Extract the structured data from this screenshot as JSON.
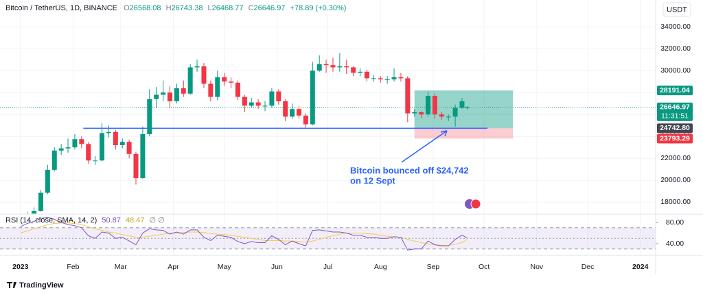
{
  "chart_data": {
    "type": "candlestick",
    "title": "Bitcoin / TetherUS, 1D, BINANCE",
    "ohlc_labels": [
      "O",
      "H",
      "L",
      "C"
    ],
    "change_label": "+78.89 (+0.30%)",
    "currency": "USDT",
    "x": [
      0,
      4,
      8,
      12,
      16,
      20,
      24,
      28,
      32,
      36,
      40,
      44,
      48,
      52,
      56,
      60,
      64,
      68,
      72,
      76,
      80,
      84,
      88,
      92,
      96,
      100,
      104,
      108,
      112,
      116,
      120,
      124,
      128,
      132,
      136,
      140,
      144,
      148,
      152,
      156,
      160,
      164,
      168,
      172,
      176,
      180,
      184,
      188,
      192,
      196,
      200,
      204,
      208,
      212,
      216,
      220,
      224,
      228,
      232,
      236,
      240,
      244,
      248,
      252,
      256,
      260,
      263
    ],
    "open": [
      16550,
      16600,
      16850,
      17200,
      18850,
      20950,
      22700,
      22900,
      23000,
      23750,
      23300,
      21800,
      21800,
      24300,
      24400,
      23200,
      23500,
      22400,
      20200,
      24200,
      27400,
      27800,
      28000,
      27200,
      28400,
      27900,
      30300,
      30400,
      28800,
      27600,
      29400,
      29000,
      28900,
      27600,
      26800,
      27100,
      26800,
      26800,
      28100,
      27200,
      25800,
      26500,
      25900,
      25100,
      30000,
      30600,
      30500,
      30300,
      30400,
      30300,
      29800,
      29900,
      29300,
      29300,
      29200,
      29200,
      29400,
      29300,
      26100,
      26200,
      26000,
      27700,
      26000,
      25800,
      25800,
      26600,
      26568.08
    ],
    "high": [
      16900,
      17100,
      17500,
      19100,
      21400,
      23000,
      23300,
      23800,
      24200,
      24000,
      23500,
      22200,
      25200,
      25000,
      24600,
      23800,
      23700,
      22600,
      24900,
      28300,
      28500,
      29100,
      28600,
      28800,
      29100,
      30600,
      31000,
      30700,
      29100,
      30000,
      29800,
      29400,
      29100,
      27800,
      27500,
      27400,
      27200,
      28400,
      28300,
      27400,
      27000,
      26800,
      26100,
      30800,
      31400,
      31000,
      31200,
      31600,
      31000,
      30400,
      30200,
      30100,
      29600,
      29500,
      29500,
      30200,
      29800,
      29500,
      26500,
      26300,
      28100,
      27900,
      26200,
      26000,
      26900,
      27500,
      26743.38
    ],
    "low": [
      16400,
      16450,
      16700,
      17100,
      18700,
      20800,
      22300,
      22500,
      22800,
      22900,
      21500,
      21400,
      21700,
      23900,
      22800,
      22900,
      22000,
      19600,
      20100,
      24000,
      26600,
      27200,
      26600,
      27000,
      27600,
      27800,
      29900,
      28400,
      27200,
      27300,
      28600,
      28400,
      27300,
      26200,
      26600,
      26500,
      26300,
      26600,
      26900,
      25400,
      25600,
      25600,
      24800,
      25000,
      29900,
      29800,
      29900,
      29900,
      29700,
      29500,
      29500,
      29000,
      29000,
      28900,
      28800,
      29000,
      29000,
      25300,
      25800,
      25700,
      25800,
      25600,
      25500,
      25400,
      24900,
      26500,
      26468.77
    ],
    "close": [
      16600,
      16850,
      17200,
      18850,
      20950,
      22700,
      22900,
      23000,
      23750,
      23300,
      21800,
      21800,
      24300,
      24400,
      23200,
      23500,
      22400,
      20200,
      24200,
      27400,
      27800,
      28000,
      27200,
      28400,
      27900,
      30300,
      30400,
      28800,
      27600,
      29400,
      29000,
      28900,
      27600,
      26800,
      27100,
      26800,
      26800,
      28100,
      27200,
      25800,
      26500,
      25900,
      25100,
      30000,
      30600,
      30500,
      30300,
      30400,
      30300,
      29800,
      29900,
      29300,
      29300,
      29200,
      29200,
      29400,
      29300,
      26100,
      26200,
      26000,
      27700,
      26000,
      25800,
      25800,
      26600,
      27200,
      26646.97
    ],
    "colors": {
      "up": "#089981",
      "down": "#f23645"
    },
    "xlim": [
      -8,
      374
    ],
    "xticks": [
      {
        "value": 0,
        "label": "2023"
      },
      {
        "value": 31,
        "label": "Feb"
      },
      {
        "value": 59,
        "label": "Mar"
      },
      {
        "value": 90,
        "label": "Apr"
      },
      {
        "value": 120,
        "label": "May"
      },
      {
        "value": 151,
        "label": "Jun"
      },
      {
        "value": 181,
        "label": "Jul"
      },
      {
        "value": 212,
        "label": "Aug"
      },
      {
        "value": 243,
        "label": "Sep"
      },
      {
        "value": 273,
        "label": "Oct"
      },
      {
        "value": 304,
        "label": "Nov"
      },
      {
        "value": 334,
        "label": "Dec"
      },
      {
        "value": 365,
        "label": "2024"
      }
    ],
    "ylim": [
      16950,
      36450
    ],
    "yticks": [
      {
        "value": 18000,
        "label": "18000.00"
      },
      {
        "value": 20000,
        "label": "20000.00"
      },
      {
        "value": 22000,
        "label": "22000.00"
      },
      {
        "value": 24000,
        "label": "24000.00"
      },
      {
        "value": 26000,
        "label": "26000.00"
      },
      {
        "value": 28000,
        "label": "28000.00"
      },
      {
        "value": 30000,
        "label": "30000.00"
      },
      {
        "value": 32000,
        "label": "32000.00"
      },
      {
        "value": 34000,
        "label": "34000.00"
      }
    ],
    "grid": true,
    "countdown": "11:31:51",
    "position": {
      "x": [
        232,
        290
      ],
      "entry": {
        "value": 24742.8,
        "label": "24742.80"
      },
      "target": 28191.04,
      "stop": 23793.29,
      "line_x": [
        37,
        275
      ],
      "line_color": "#2962ff"
    },
    "annotation": [
      "Bitcoin bounced off $24,742",
      "on 12 Sept"
    ],
    "rsi": {
      "title": "RSI (14, close, SMA, 14, 2)",
      "values": [
        72,
        78,
        82,
        88,
        90,
        86,
        80,
        76,
        74,
        70,
        55,
        50,
        62,
        60,
        50,
        52,
        45,
        38,
        60,
        68,
        66,
        65,
        58,
        62,
        58,
        66,
        66,
        52,
        46,
        56,
        54,
        52,
        44,
        40,
        44,
        42,
        42,
        55,
        48,
        38,
        45,
        40,
        36,
        65,
        66,
        64,
        62,
        62,
        60,
        56,
        56,
        52,
        52,
        50,
        50,
        53,
        52,
        28,
        30,
        30,
        45,
        38,
        36,
        36,
        48,
        56,
        50.87
      ],
      "sma": [
        60,
        64,
        68,
        72,
        76,
        78,
        79,
        79,
        78,
        76,
        72,
        68,
        65,
        62,
        60,
        57,
        55,
        52,
        52,
        54,
        56,
        58,
        60,
        61,
        61,
        62,
        62,
        61,
        59,
        58,
        57,
        56,
        54,
        52,
        50,
        48,
        46,
        46,
        46,
        45,
        45,
        44,
        43,
        45,
        48,
        52,
        55,
        58,
        60,
        60,
        60,
        59,
        58,
        56,
        54,
        53,
        52,
        48,
        45,
        42,
        40,
        38,
        37,
        37,
        39,
        42,
        48.47
      ],
      "extra": "∅ ∅",
      "color": "#7e57c2",
      "sma_color": "#f7c948",
      "ylim": [
        19.4,
        94.2
      ],
      "yticks": [
        {
          "value": 80,
          "label": "80.00"
        },
        {
          "value": 40,
          "label": "40.00"
        }
      ],
      "bands": [
        70,
        50,
        30
      ]
    },
    "brand": "TradingView"
  }
}
